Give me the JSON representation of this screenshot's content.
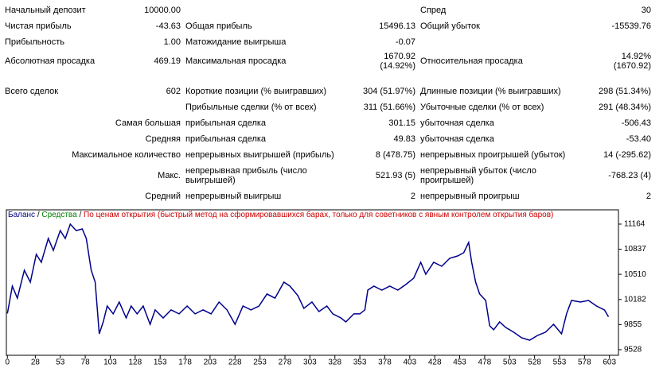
{
  "report": {
    "rows": [
      [
        "Начальный депозит",
        "10000.00",
        null,
        null,
        "Спред",
        "30"
      ],
      [
        "Чистая прибыль",
        "-43.63",
        "Общая прибыль",
        "15496.13",
        "Общий убыток",
        "-15539.76"
      ],
      [
        "Прибыльность",
        "1.00",
        "Матожидание выигрыша",
        "-0.07",
        null,
        null
      ],
      [
        "Абсолютная просадка",
        "469.19",
        "Максимальная просадка",
        "1670.92\n(14.92%)",
        "Относительная просадка",
        "14.92%\n(1670.92)"
      ],
      [
        "Всего сделок",
        "602",
        "Короткие позиции (% выигравших)",
        "304 (51.97%)",
        "Длинные позиции (% выигравших)",
        "298 (51.34%)"
      ],
      [
        null,
        null,
        "Прибыльные сделки (% от всех)",
        "311 (51.66%)",
        "Убыточные сделки (% от всех)",
        "291 (48.34%)"
      ],
      [
        null,
        "Самая большая",
        "прибыльная сделка",
        "301.15",
        "убыточная сделка",
        "-506.43"
      ],
      [
        null,
        "Средняя",
        "прибыльная сделка",
        "49.83",
        "убыточная сделка",
        "-53.40"
      ],
      [
        null,
        "Максимальное количество",
        "непрерывных выигрышей (прибыль)",
        "8 (478.75)",
        "непрерывных проигрышей (убыток)",
        "14 (-295.62)"
      ],
      [
        null,
        "Макс.",
        "непрерывная прибыль (число\nвыигрышей)",
        "521.93 (5)",
        "непрерывный убыток (число\nпроигрышей)",
        "-768.23 (4)"
      ],
      [
        null,
        "Средний",
        "непрерывный выигрыш",
        "2",
        "непрерывный проигрыш",
        "2"
      ]
    ]
  },
  "chart_data": {
    "type": "line",
    "legend": [
      {
        "text": "Баланс",
        "color": "#00008b"
      },
      {
        "text": " / ",
        "color": "#000000"
      },
      {
        "text": "Средства",
        "color": "#008000"
      },
      {
        "text": " / ",
        "color": "#000000"
      },
      {
        "text": "По ценам открытия (быстрый метод на сформировавшихся барах, только для советников с явным контролем открытия баров)",
        "color": "#cc0000"
      }
    ],
    "series": [
      {
        "name": "Баланс",
        "color": "#00008b",
        "x": [
          0,
          5,
          10,
          17,
          23,
          29,
          34,
          41,
          46,
          53,
          58,
          63,
          69,
          75,
          79,
          84,
          88,
          92,
          96,
          100,
          106,
          112,
          119,
          124,
          130,
          136,
          143,
          148,
          156,
          164,
          172,
          180,
          188,
          196,
          204,
          212,
          220,
          228,
          236,
          244,
          252,
          260,
          268,
          277,
          283,
          291,
          297,
          305,
          312,
          320,
          326,
          334,
          339,
          347,
          353,
          358,
          361,
          367,
          375,
          383,
          391,
          399,
          407,
          414,
          419,
          427,
          435,
          443,
          451,
          457,
          462,
          465,
          469,
          473,
          479,
          483,
          487,
          493,
          499,
          507,
          515,
          523,
          531,
          539,
          547,
          555,
          560,
          565,
          574,
          582,
          590,
          598,
          602
        ],
        "values": [
          10000,
          10356,
          10200,
          10563,
          10408,
          10770,
          10667,
          10977,
          10822,
          11080,
          10977,
          11164,
          11080,
          11101,
          10977,
          10563,
          10408,
          9735,
          9890,
          10097,
          9994,
          10149,
          9942,
          10097,
          9994,
          10097,
          9859,
          10046,
          9942,
          10046,
          9994,
          10097,
          9994,
          10046,
          9994,
          10149,
          10046,
          9859,
          10097,
          10046,
          10097,
          10253,
          10200,
          10408,
          10356,
          10232,
          10066,
          10149,
          10025,
          10097,
          9994,
          9942,
          9890,
          9994,
          9994,
          10046,
          10304,
          10356,
          10304,
          10356,
          10304,
          10377,
          10460,
          10667,
          10511,
          10667,
          10615,
          10718,
          10749,
          10791,
          10925,
          10667,
          10408,
          10253,
          10170,
          9839,
          9787,
          9890,
          9818,
          9756,
          9683,
          9652,
          9714,
          9756,
          9859,
          9735,
          9994,
          10170,
          10149,
          10170,
          10097,
          10046,
          9956
        ]
      }
    ],
    "xlim": [
      -1,
      612
    ],
    "ylim": [
      9455,
      11350
    ],
    "xticks": [
      0,
      28,
      53,
      78,
      103,
      128,
      153,
      178,
      203,
      228,
      253,
      278,
      303,
      328,
      353,
      378,
      403,
      428,
      453,
      478,
      503,
      528,
      553,
      578,
      603
    ],
    "yticks": [
      9528,
      9855,
      10182,
      10510,
      10837,
      11164
    ]
  }
}
